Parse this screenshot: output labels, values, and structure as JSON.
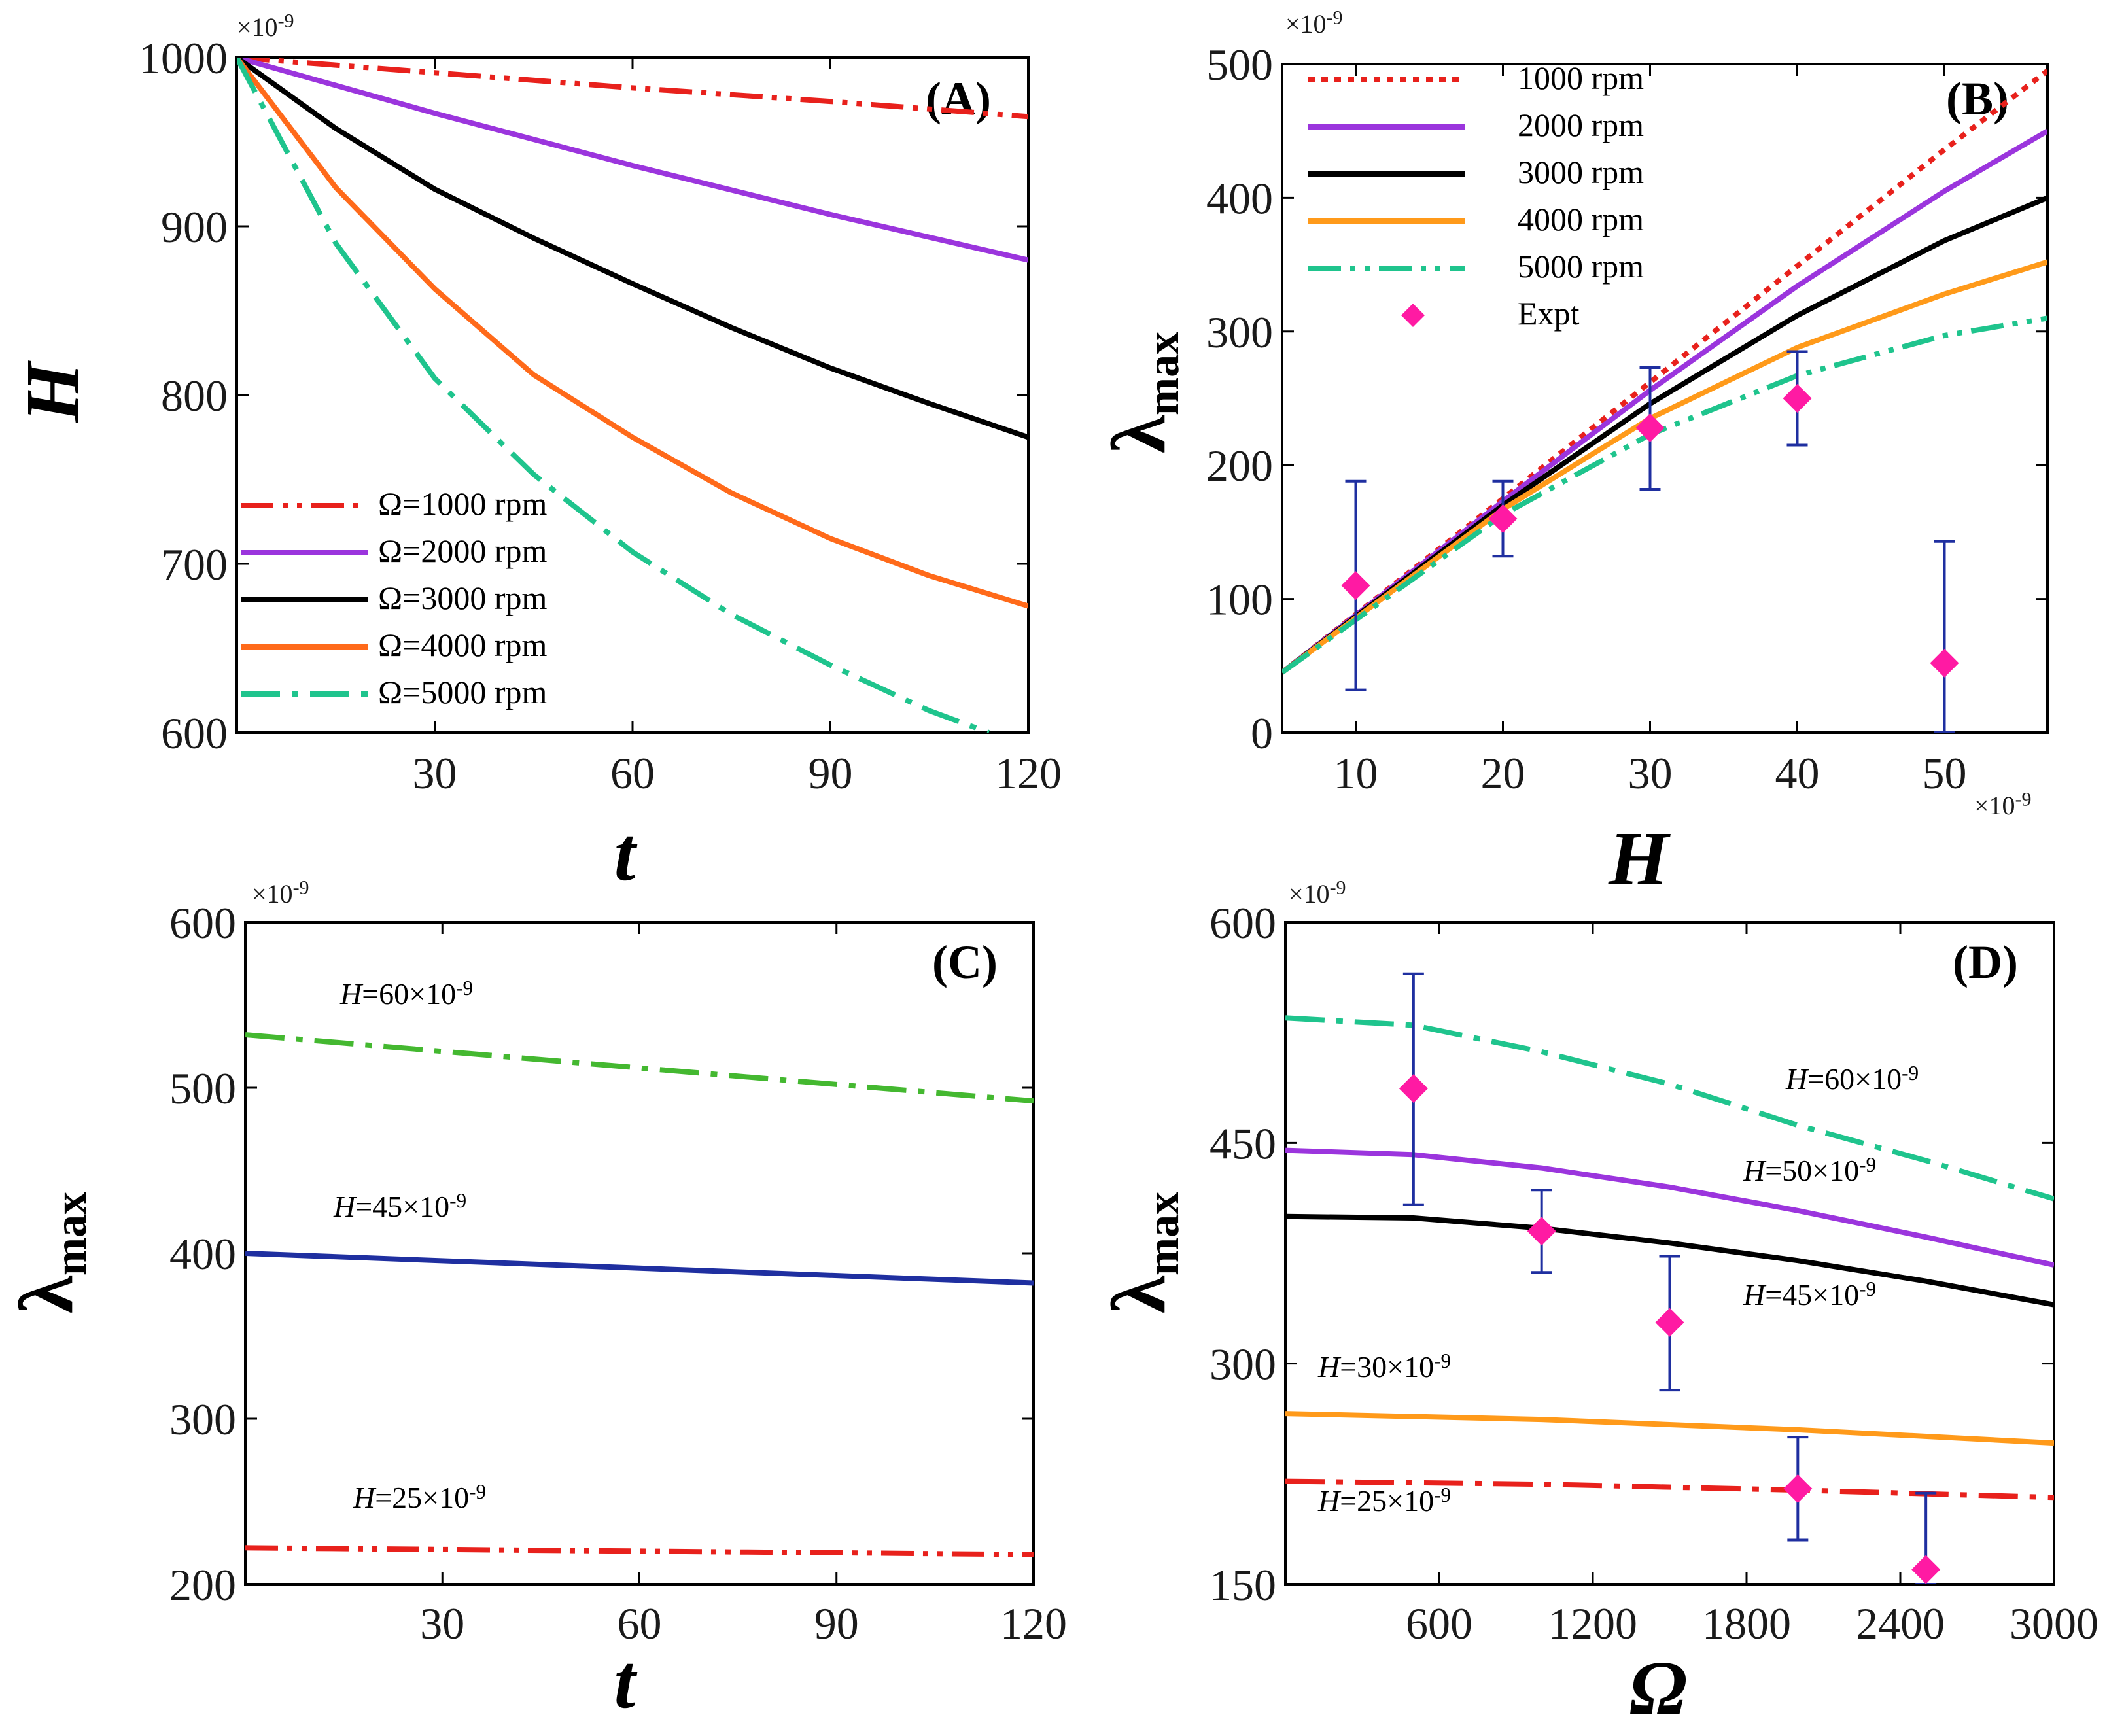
{
  "chart_data": [
    {
      "panel": "(A)",
      "type": "line",
      "xlabel": "t",
      "ylabel": "H",
      "y_multiplier": "×10-9",
      "xlim": [
        0,
        120
      ],
      "ylim": [
        600,
        1000
      ],
      "xticks": [
        30,
        60,
        90,
        120
      ],
      "yticks": [
        600,
        700,
        800,
        900,
        1000
      ],
      "legend_position": "bottom-left",
      "series": [
        {
          "name": "Ω=1000 rpm",
          "color": "#e8211c",
          "dash": "dashdotdot",
          "x": [
            0,
            30,
            60,
            90,
            120
          ],
          "y": [
            1000,
            991,
            982,
            974,
            965
          ]
        },
        {
          "name": "Ω=2000 rpm",
          "color": "#9b35dd",
          "dash": "solid",
          "x": [
            0,
            30,
            60,
            90,
            120
          ],
          "y": [
            1000,
            967,
            936,
            907,
            880
          ]
        },
        {
          "name": "Ω=3000 rpm",
          "color": "#000000",
          "dash": "solid",
          "x": [
            0,
            15,
            30,
            45,
            60,
            75,
            90,
            105,
            120
          ],
          "y": [
            1000,
            958,
            922,
            893,
            866,
            840,
            816,
            795,
            775
          ]
        },
        {
          "name": "Ω=4000 rpm",
          "color": "#ff6a1a",
          "dash": "solid",
          "x": [
            0,
            15,
            30,
            45,
            60,
            75,
            90,
            105,
            120
          ],
          "y": [
            1000,
            923,
            863,
            812,
            775,
            742,
            715,
            693,
            675
          ]
        },
        {
          "name": "Ω=5000 rpm",
          "color": "#1fc48d",
          "dash": "dashdot",
          "x": [
            0,
            15,
            30,
            45,
            60,
            75,
            90,
            105,
            114
          ],
          "y": [
            1000,
            890,
            810,
            753,
            707,
            670,
            640,
            613,
            600
          ]
        }
      ]
    },
    {
      "panel": "(B)",
      "type": "line",
      "xlabel": "H",
      "ylabel": "λmax",
      "x_multiplier": "×10-9",
      "y_multiplier": "×10-9",
      "xlim": [
        5,
        57
      ],
      "ylim": [
        0,
        500
      ],
      "xticks": [
        10,
        20,
        30,
        40,
        50
      ],
      "yticks": [
        0,
        100,
        200,
        300,
        400,
        500
      ],
      "legend_position": "top-left",
      "series": [
        {
          "name": "1000 rpm",
          "color": "#e8211c",
          "dash": "dotted",
          "x": [
            5,
            20,
            30,
            40,
            50,
            57
          ],
          "y": [
            45,
            175,
            262,
            349,
            436,
            495
          ]
        },
        {
          "name": "2000 rpm",
          "color": "#9b35dd",
          "dash": "solid",
          "x": [
            5,
            20,
            30,
            40,
            50,
            57
          ],
          "y": [
            45,
            173,
            256,
            334,
            405,
            450
          ]
        },
        {
          "name": "3000 rpm",
          "color": "#000000",
          "dash": "solid",
          "x": [
            5,
            20,
            30,
            40,
            50,
            57
          ],
          "y": [
            45,
            170,
            246,
            312,
            368,
            400
          ]
        },
        {
          "name": "4000 rpm",
          "color": "#ff9a1a",
          "dash": "solid",
          "x": [
            5,
            20,
            30,
            40,
            50,
            57
          ],
          "y": [
            45,
            167,
            235,
            288,
            328,
            352
          ]
        },
        {
          "name": "5000 rpm",
          "color": "#1fc48d",
          "dash": "dashdotdot",
          "x": [
            5,
            20,
            30,
            40,
            50,
            57
          ],
          "y": [
            45,
            163,
            223,
            267,
            297,
            310
          ]
        },
        {
          "name": "Expt",
          "color": "#ff1aa3",
          "marker": "diamond",
          "x": [
            10,
            20,
            30,
            40,
            50
          ],
          "y": [
            110,
            160,
            228,
            250,
            52
          ],
          "yerr_low": [
            32,
            132,
            182,
            215,
            0
          ],
          "yerr_high": [
            188,
            188,
            273,
            285,
            143
          ]
        }
      ]
    },
    {
      "panel": "(C)",
      "type": "line",
      "xlabel": "t",
      "ylabel": "λmax",
      "y_multiplier": "×10-9",
      "xlim": [
        0,
        120
      ],
      "ylim": [
        200,
        600
      ],
      "xticks": [
        30,
        60,
        90,
        120
      ],
      "yticks": [
        200,
        300,
        400,
        500,
        600
      ],
      "series": [
        {
          "name": "H=60×10-9",
          "color": "#44b830",
          "dash": "dashdot",
          "x": [
            0,
            120
          ],
          "y": [
            532,
            492
          ]
        },
        {
          "name": "H=45×10-9",
          "color": "#1f2fa0",
          "dash": "solid",
          "x": [
            0,
            120
          ],
          "y": [
            400,
            382
          ]
        },
        {
          "name": "H=25×10-9",
          "color": "#e8211c",
          "dash": "dashdotdot",
          "x": [
            0,
            120
          ],
          "y": [
            222,
            218
          ]
        }
      ]
    },
    {
      "panel": "(D)",
      "type": "line",
      "xlabel": "Ω",
      "ylabel": "λmax",
      "y_multiplier": "×10-9",
      "xlim": [
        0,
        3000
      ],
      "ylim": [
        150,
        600
      ],
      "xticks": [
        600,
        1200,
        1800,
        2400,
        3000
      ],
      "yticks": [
        150,
        300,
        450,
        600
      ],
      "series": [
        {
          "name": "H=60×10-9",
          "color": "#1fc48d",
          "dash": "dashdot",
          "x": [
            0,
            500,
            1000,
            1500,
            2000,
            2500,
            3000
          ],
          "y": [
            535,
            530,
            512,
            490,
            462,
            438,
            412
          ]
        },
        {
          "name": "H=50×10-9",
          "color": "#9b35dd",
          "dash": "solid",
          "x": [
            0,
            500,
            1000,
            1500,
            2000,
            2500,
            3000
          ],
          "y": [
            445,
            442,
            433,
            420,
            404,
            386,
            367
          ]
        },
        {
          "name": "H=45×10-9",
          "color": "#000000",
          "dash": "solid",
          "x": [
            0,
            500,
            1000,
            1500,
            2000,
            2500,
            3000
          ],
          "y": [
            400,
            399,
            392,
            382,
            370,
            356,
            340
          ]
        },
        {
          "name": "H=30×10-9",
          "color": "#ff9a1a",
          "dash": "solid",
          "x": [
            0,
            1000,
            2000,
            3000
          ],
          "y": [
            266,
            262,
            255,
            246
          ]
        },
        {
          "name": "H=25×10-9",
          "color": "#e8211c",
          "dash": "dashdot",
          "x": [
            0,
            1000,
            2000,
            3000
          ],
          "y": [
            220,
            218,
            214,
            209
          ]
        },
        {
          "name": "",
          "color": "#ff1aa3",
          "marker": "diamond",
          "x": [
            500,
            1000,
            1500,
            2000,
            2500
          ],
          "y": [
            487,
            390,
            328,
            215,
            160
          ],
          "yerr_low": [
            408,
            362,
            282,
            180,
            150
          ],
          "yerr_high": [
            565,
            418,
            373,
            250,
            212
          ]
        }
      ]
    }
  ]
}
